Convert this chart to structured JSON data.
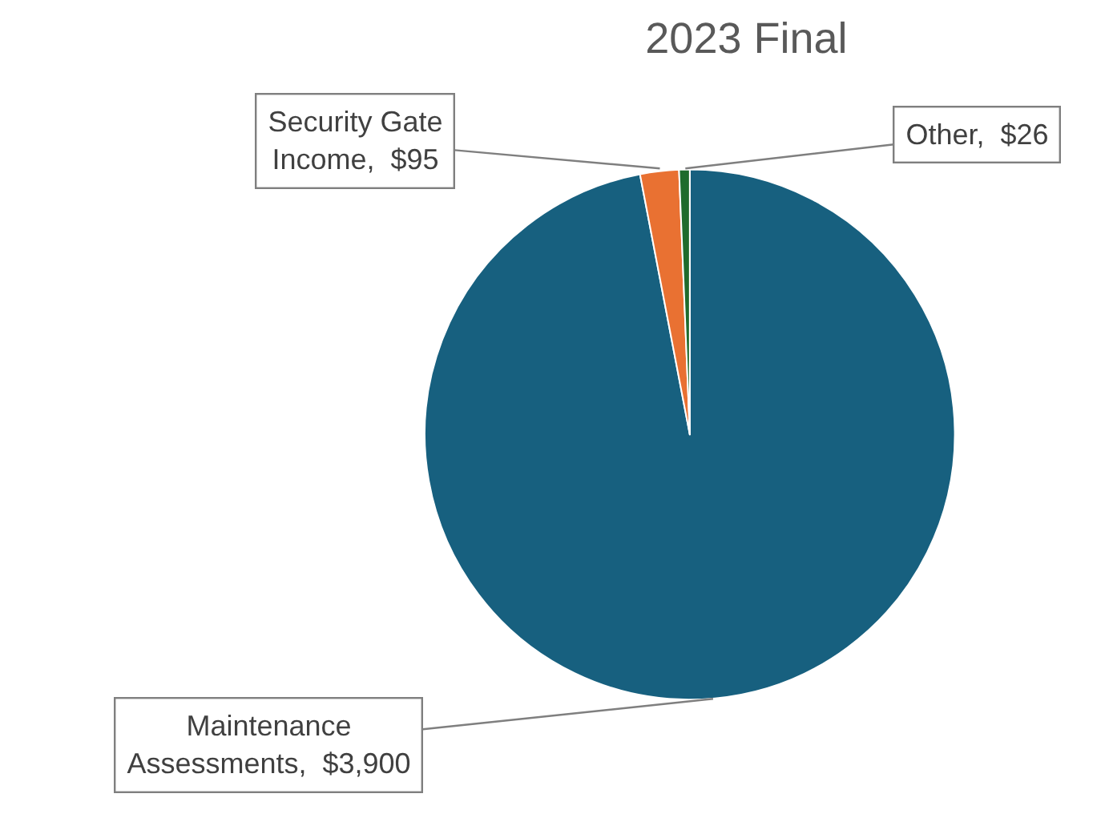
{
  "chart_data": {
    "type": "pie",
    "title": "2023 Final",
    "categories": [
      "Maintenance Assessments",
      "Security Gate Income",
      "Other"
    ],
    "values": [
      3900,
      95,
      26
    ],
    "value_labels": [
      "$3,900",
      "$95",
      "$26"
    ],
    "colors": [
      "#17607f",
      "#e97132",
      "#1f6b2c"
    ],
    "legend": false
  }
}
